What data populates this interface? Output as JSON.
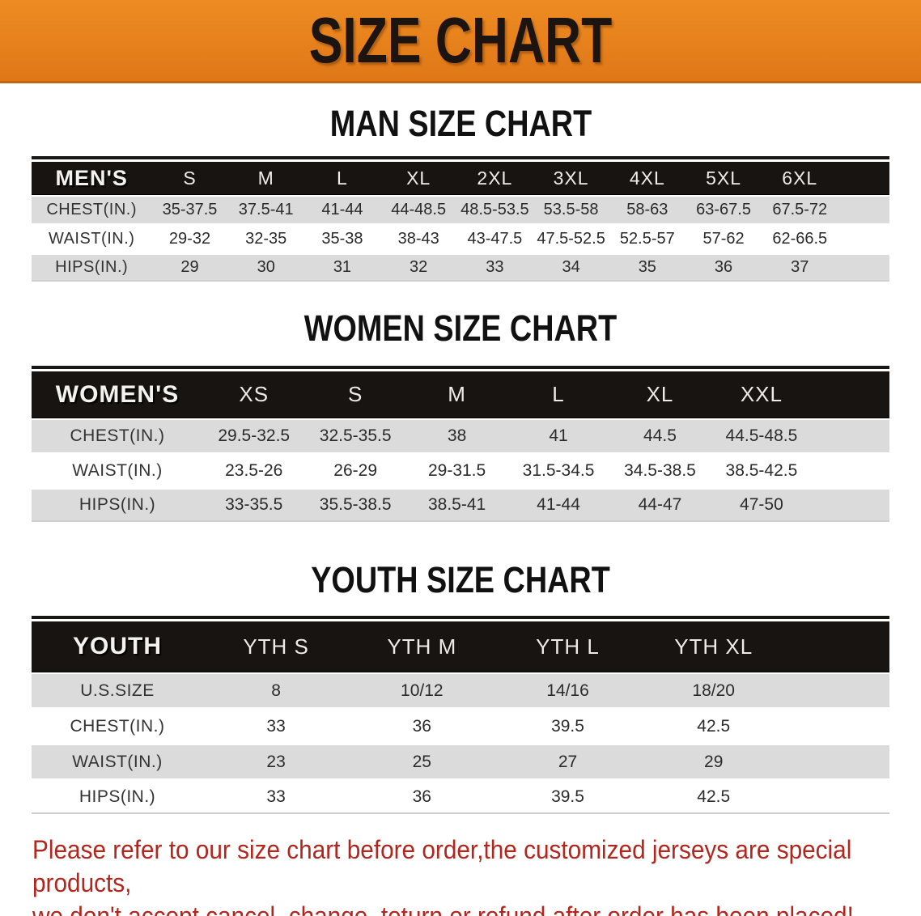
{
  "banner": {
    "title": "SIZE CHART"
  },
  "colors": {
    "banner_bg": "#E5801C",
    "header_bar": "#171412",
    "stripe_gray": "#DBDBDB",
    "note_red": "#B1271F"
  },
  "tables": {
    "men": {
      "heading": "MAN SIZE CHART",
      "header_label": "MEN'S",
      "sizes": [
        "S",
        "M",
        "L",
        "XL",
        "2XL",
        "3XL",
        "4XL",
        "5XL",
        "6XL"
      ],
      "rows": [
        {
          "label": "CHEST(IN.)",
          "values": [
            "35-37.5",
            "37.5-41",
            "41-44",
            "44-48.5",
            "48.5-53.5",
            "53.5-58",
            "58-63",
            "63-67.5",
            "67.5-72"
          ]
        },
        {
          "label": "WAIST(IN.)",
          "values": [
            "29-32",
            "32-35",
            "35-38",
            "38-43",
            "43-47.5",
            "47.5-52.5",
            "52.5-57",
            "57-62",
            "62-66.5"
          ]
        },
        {
          "label": "HIPS(IN.)",
          "values": [
            "29",
            "30",
            "31",
            "32",
            "33",
            "34",
            "35",
            "36",
            "37"
          ]
        }
      ]
    },
    "women": {
      "heading": "WOMEN SIZE CHART",
      "header_label": "WOMEN'S",
      "sizes": [
        "XS",
        "S",
        "M",
        "L",
        "XL",
        "XXL"
      ],
      "rows": [
        {
          "label": "CHEST(IN.)",
          "values": [
            "29.5-32.5",
            "32.5-35.5",
            "38",
            "41",
            "44.5",
            "44.5-48.5"
          ]
        },
        {
          "label": "WAIST(IN.)",
          "values": [
            "23.5-26",
            "26-29",
            "29-31.5",
            "31.5-34.5",
            "34.5-38.5",
            "38.5-42.5"
          ]
        },
        {
          "label": "HIPS(IN.)",
          "values": [
            "33-35.5",
            "35.5-38.5",
            "38.5-41",
            "41-44",
            "44-47",
            "47-50"
          ]
        }
      ]
    },
    "youth": {
      "heading": "YOUTH SIZE CHART",
      "header_label": "YOUTH",
      "sizes": [
        "YTH S",
        "YTH M",
        "YTH L",
        "YTH XL"
      ],
      "rows": [
        {
          "label": "U.S.SIZE",
          "values": [
            "8",
            "10/12",
            "14/16",
            "18/20"
          ]
        },
        {
          "label": "CHEST(IN.)",
          "values": [
            "33",
            "36",
            "39.5",
            "42.5"
          ]
        },
        {
          "label": "WAIST(IN.)",
          "values": [
            "23",
            "25",
            "27",
            "29"
          ]
        },
        {
          "label": "HIPS(IN.)",
          "values": [
            "33",
            "36",
            "39.5",
            "42.5"
          ]
        }
      ]
    }
  },
  "note": {
    "line1": "Please refer to our size chart before order,the customized jerseys are special products,",
    "line2": "we don't accept cancel, change, teturn or refund after order has been placed!"
  }
}
